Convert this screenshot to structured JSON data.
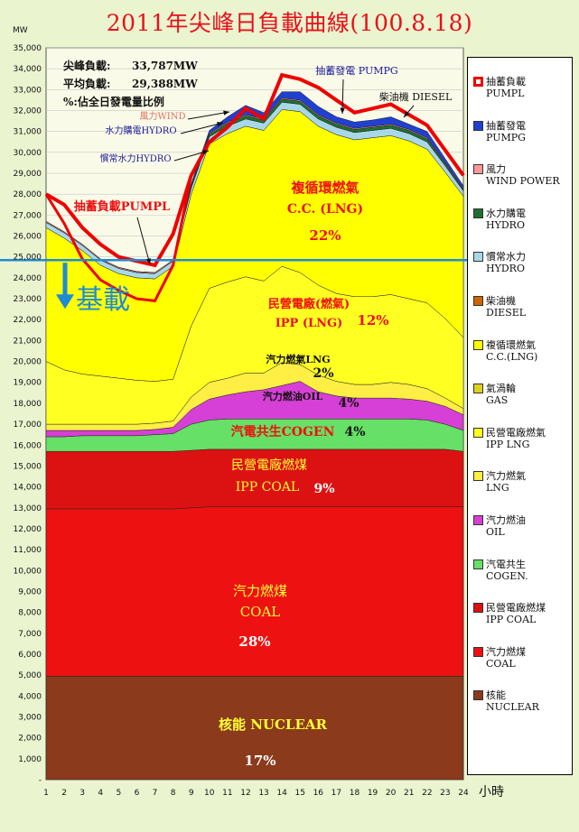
{
  "title": "2011年尖峰日負載曲線(100.8.18)",
  "colors": {
    "background": "#eaf4cf",
    "plot_background": "#fafae8",
    "baseline": "#1e8bd6",
    "title": "#e8101a"
  },
  "chart_data": {
    "type": "area",
    "stacked": true,
    "xlabel": "小時",
    "ylabel": "MW",
    "ylim": [
      0,
      35000
    ],
    "yticks": [
      "-",
      "1,000",
      "2,000",
      "3,000",
      "4,000",
      "5,000",
      "6,000",
      "7,000",
      "8,000",
      "9,000",
      "10,000",
      "11,000",
      "12,000",
      "13,000",
      "14,000",
      "15,000",
      "16,000",
      "17,000",
      "18,000",
      "19,000",
      "20,000",
      "21,000",
      "22,000",
      "23,000",
      "24,000",
      "25,000",
      "26,000",
      "27,000",
      "28,000",
      "29,000",
      "30,000",
      "31,000",
      "32,000",
      "33,000",
      "34,000",
      "35,000"
    ],
    "x": [
      1,
      2,
      3,
      4,
      5,
      6,
      7,
      8,
      9,
      10,
      11,
      12,
      13,
      14,
      15,
      16,
      17,
      18,
      19,
      20,
      21,
      22,
      23,
      24
    ],
    "grid": true,
    "legend_position": "right",
    "summary": {
      "peak_label": "尖峰負載:",
      "peak_value": "33,787MW",
      "avg_label": "平均負載:",
      "avg_value": "29,388MW",
      "note": "%:佔全日發電量比例"
    },
    "baseline_level": 24850,
    "baseline_label": "基載",
    "series": [
      {
        "key": "nuclear",
        "name": "核能 NUCLEAR",
        "legend": [
          "核能",
          "NUCLEAR"
        ],
        "color": "#8b3a1c",
        "values": [
          4950,
          4950,
          4950,
          4950,
          4950,
          4950,
          4950,
          4950,
          4950,
          4950,
          4950,
          4950,
          4950,
          4950,
          4950,
          4950,
          4950,
          4950,
          4950,
          4950,
          4950,
          4950,
          4950,
          4950
        ]
      },
      {
        "key": "coal",
        "name": "汽力燃煤 COAL",
        "legend": [
          "汽力燃煤",
          "COAL"
        ],
        "color": "#ee1111",
        "values": [
          8000,
          8000,
          8000,
          8000,
          8000,
          8000,
          8000,
          8000,
          8050,
          8100,
          8100,
          8100,
          8100,
          8100,
          8100,
          8100,
          8100,
          8100,
          8100,
          8100,
          8100,
          8100,
          8100,
          8100
        ]
      },
      {
        "key": "ipp_coal",
        "name": "民營電廠燃煤 IPP COAL",
        "legend": [
          "民營電廠燃煤",
          "IPP COAL"
        ],
        "color": "#dc1212",
        "values": [
          2750,
          2750,
          2750,
          2750,
          2750,
          2750,
          2750,
          2750,
          2750,
          2750,
          2750,
          2750,
          2750,
          2750,
          2750,
          2750,
          2750,
          2750,
          2750,
          2750,
          2750,
          2750,
          2750,
          2650
        ]
      },
      {
        "key": "cogen",
        "name": "汽電共生 COGEN.",
        "legend": [
          "汽電共生",
          "COGEN."
        ],
        "color": "#66e066",
        "values": [
          700,
          700,
          750,
          750,
          750,
          750,
          800,
          850,
          1250,
          1400,
          1450,
          1450,
          1450,
          1450,
          1450,
          1450,
          1450,
          1450,
          1450,
          1450,
          1450,
          1400,
          1200,
          1000
        ]
      },
      {
        "key": "oil",
        "name": "汽力燃油 OIL",
        "legend": [
          "汽力燃油",
          "OIL"
        ],
        "color": "#d640d6",
        "values": [
          300,
          300,
          250,
          250,
          250,
          250,
          250,
          300,
          700,
          1000,
          1150,
          1300,
          1400,
          1600,
          1800,
          1300,
          1100,
          1000,
          1000,
          1000,
          950,
          900,
          850,
          750
        ]
      },
      {
        "key": "lng",
        "name": "汽力燃氣 LNG",
        "legend": [
          "汽力燃氣",
          "LNG"
        ],
        "color": "#ffee44",
        "values": [
          300,
          300,
          300,
          300,
          300,
          300,
          300,
          300,
          600,
          800,
          800,
          900,
          800,
          1100,
          800,
          800,
          700,
          650,
          650,
          750,
          700,
          600,
          400,
          300
        ]
      },
      {
        "key": "ipp_lng",
        "name": "民營電廠燃氣 IPP LNG",
        "legend": [
          "民營電廠燃氣",
          "IPP LNG"
        ],
        "color": "#ffff22",
        "values": [
          3000,
          2600,
          2400,
          2300,
          2200,
          2100,
          2000,
          2000,
          3400,
          4500,
          4600,
          4600,
          4400,
          4600,
          4400,
          4300,
          4200,
          4200,
          4200,
          4200,
          4100,
          4100,
          3800,
          3400
        ]
      },
      {
        "key": "gas",
        "name": "氣渦輪 GAS",
        "legend": [
          "氣渦輪",
          "GAS"
        ],
        "color": "#e0d020",
        "values": [
          0,
          0,
          0,
          0,
          0,
          0,
          0,
          0,
          0,
          0,
          0,
          0,
          0,
          0,
          0,
          0,
          0,
          0,
          0,
          0,
          0,
          0,
          0,
          0
        ]
      },
      {
        "key": "cc_lng",
        "name": "複循環燃氣 C.C.(LNG)",
        "legend": [
          "複循環燃氣",
          "C.C.(LNG)"
        ],
        "color": "#ffff00",
        "values": [
          6400,
          6300,
          5900,
          5300,
          5000,
          4900,
          4900,
          5400,
          6300,
          6900,
          7100,
          7200,
          7200,
          7500,
          7700,
          7600,
          7600,
          7500,
          7600,
          7600,
          7550,
          7350,
          7000,
          6750
        ]
      },
      {
        "key": "diesel",
        "name": "柴油機 DIESEL",
        "legend": [
          "柴油機",
          "DIESEL"
        ],
        "color": "#cc6600",
        "values": [
          0,
          0,
          0,
          0,
          0,
          0,
          0,
          0,
          0,
          0,
          0,
          0,
          0,
          0,
          0,
          0,
          0,
          0,
          0,
          0,
          0,
          0,
          0,
          0
        ]
      },
      {
        "key": "hydro_run",
        "name": "慣常水力 HYDRO",
        "legend": [
          "慣常水力",
          "HYDRO"
        ],
        "color": "#a8d8e8",
        "values": [
          250,
          250,
          250,
          250,
          250,
          250,
          250,
          250,
          300,
          350,
          350,
          350,
          350,
          350,
          350,
          350,
          350,
          350,
          350,
          350,
          350,
          350,
          300,
          250
        ]
      },
      {
        "key": "hydro_pumped",
        "name": "水力購電 HYDRO",
        "legend": [
          "水力購電",
          "HYDRO"
        ],
        "color": "#1f6f2f",
        "values": [
          0,
          0,
          0,
          0,
          0,
          0,
          0,
          0,
          50,
          100,
          150,
          150,
          150,
          150,
          150,
          150,
          150,
          150,
          150,
          150,
          150,
          150,
          100,
          50
        ]
      },
      {
        "key": "wind",
        "name": "風力 WIND POWER",
        "legend": [
          "風力",
          "WIND POWER"
        ],
        "color": "#ff9999",
        "values": [
          50,
          50,
          50,
          50,
          50,
          50,
          50,
          50,
          50,
          50,
          50,
          50,
          50,
          50,
          50,
          50,
          50,
          50,
          50,
          50,
          50,
          50,
          50,
          50
        ]
      },
      {
        "key": "pumpg",
        "name": "抽蓄發電 PUMPG",
        "legend": [
          "抽蓄發電",
          "PUMPG"
        ],
        "color": "#2040d0",
        "values": [
          0,
          0,
          0,
          0,
          0,
          0,
          0,
          0,
          100,
          150,
          250,
          450,
          300,
          300,
          400,
          400,
          300,
          300,
          300,
          350,
          250,
          300,
          200,
          150
        ]
      }
    ],
    "pumping_load": {
      "name": "抽蓄負載 PUMPL",
      "legend": [
        "抽蓄負載",
        "PUMPL"
      ],
      "color": "#ee0000",
      "total_load": [
        28000,
        27500,
        26400,
        25600,
        25000,
        24800,
        24600,
        26100,
        28900,
        30500,
        31200,
        32100,
        31600,
        33700,
        33500,
        33100,
        32500,
        31900,
        32100,
        32300,
        31800,
        31300,
        30100,
        28900
      ],
      "after_pumping": [
        28000,
        26600,
        24900,
        23900,
        23400,
        23000,
        22900,
        24600,
        28900,
        30500,
        31200,
        32100,
        31600,
        33700,
        33500,
        33100,
        32500,
        31900,
        32100,
        32300,
        31800,
        31300,
        30100,
        28900
      ]
    },
    "annotations": {
      "cc_lng": {
        "line1": "複循環燃氣",
        "line2": "C.C. (LNG)",
        "pct": "22%"
      },
      "ipp_lng": {
        "label": "民營電廠(燃氣)",
        "line2": "IPP (LNG)",
        "pct": "12%"
      },
      "lng": {
        "label": "汽力燃氣LNG",
        "pct": "2%"
      },
      "oil": {
        "label": "汽力燃油OIL",
        "pct": "4%"
      },
      "cogen": {
        "label": "汽電共生COGEN",
        "pct": "4%"
      },
      "ipp_coal": {
        "line1": "民營電廠燃煤",
        "line2": "IPP COAL",
        "pct": "9%"
      },
      "coal": {
        "line1": "汽力燃煤",
        "line2": "COAL",
        "pct": "28%"
      },
      "nuclear": {
        "label": "核能 NUCLEAR",
        "pct": "17%"
      },
      "pumpl": "抽蓄負載PUMPL",
      "pumpg": "抽蓄發電 PUMPG",
      "diesel": "柴油機 DIESEL",
      "wind": "風力WIND",
      "hydro_pumped": "水力購電HYDRO",
      "hydro_run": "慣常水力HYDRO"
    }
  }
}
